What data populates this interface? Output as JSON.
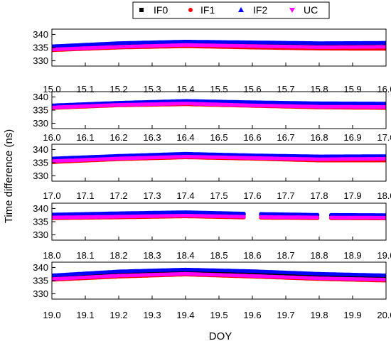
{
  "chart_data": {
    "type": "scatter",
    "ylabel": "Time difference (ns)",
    "xlabel": "DOY",
    "legend": {
      "placement": "top",
      "entries": [
        {
          "name": "IF0",
          "marker": "square",
          "color": "#000000"
        },
        {
          "name": "IF1",
          "marker": "circle",
          "color": "#ff0000"
        },
        {
          "name": "IF2",
          "marker": "triangle",
          "color": "#0000ff"
        },
        {
          "name": "UC",
          "marker": "triangle-down",
          "color": "#ff00ff"
        }
      ]
    },
    "panels": [
      {
        "xlim": [
          15.0,
          16.0
        ],
        "ylim": [
          328,
          342
        ],
        "xticks": [
          "15.0",
          "15.1",
          "15.2",
          "15.3",
          "15.4",
          "15.5",
          "15.6",
          "15.7",
          "15.8",
          "15.9",
          "16.0"
        ],
        "yticks": [
          "330",
          "335",
          "340"
        ],
        "gaps": [],
        "series": [
          {
            "name": "IF0",
            "x": [
              15.0,
              15.2,
              15.4,
              15.6,
              15.8,
              16.0
            ],
            "y": [
              335.0,
              336.0,
              336.5,
              336.0,
              335.5,
              335.5
            ]
          },
          {
            "name": "IF1",
            "x": [
              15.0,
              15.2,
              15.4,
              15.6,
              15.8,
              16.0
            ],
            "y": [
              334.0,
              335.0,
              335.5,
              335.0,
              334.6,
              334.5
            ]
          },
          {
            "name": "IF2",
            "x": [
              15.0,
              15.2,
              15.4,
              15.6,
              15.8,
              16.0
            ],
            "y": [
              335.5,
              336.7,
              337.3,
              337.0,
              336.7,
              336.8
            ]
          },
          {
            "name": "UC",
            "x": [
              15.0,
              15.2,
              15.4,
              15.6,
              15.8,
              16.0
            ],
            "y": [
              334.3,
              335.3,
              336.0,
              335.6,
              335.2,
              335.3
            ]
          }
        ]
      },
      {
        "xlim": [
          16.0,
          17.0
        ],
        "ylim": [
          328,
          342
        ],
        "xticks": [
          "16.0",
          "16.1",
          "16.2",
          "16.3",
          "16.4",
          "16.5",
          "16.6",
          "16.7",
          "16.8",
          "16.9",
          "17.0"
        ],
        "yticks": [
          "330",
          "335",
          "340"
        ],
        "gaps": [],
        "series": [
          {
            "name": "IF0",
            "x": [
              16.0,
              16.2,
              16.4,
              16.6,
              16.8,
              17.0
            ],
            "y": [
              336.3,
              337.5,
              338.0,
              337.5,
              337.0,
              337.0
            ]
          },
          {
            "name": "IF1",
            "x": [
              16.0,
              16.2,
              16.4,
              16.6,
              16.8,
              17.0
            ],
            "y": [
              335.8,
              336.8,
              337.2,
              336.6,
              336.0,
              335.8
            ]
          },
          {
            "name": "IF2",
            "x": [
              16.0,
              16.2,
              16.4,
              16.6,
              16.8,
              17.0
            ],
            "y": [
              336.8,
              337.8,
              338.5,
              338.0,
              337.6,
              337.5
            ]
          },
          {
            "name": "UC",
            "x": [
              16.0,
              16.2,
              16.4,
              16.6,
              16.8,
              17.0
            ],
            "y": [
              336.0,
              337.0,
              337.5,
              336.8,
              336.3,
              336.2
            ]
          }
        ]
      },
      {
        "xlim": [
          17.0,
          18.0
        ],
        "ylim": [
          328,
          342
        ],
        "xticks": [
          "17.0",
          "17.1",
          "17.2",
          "17.3",
          "17.4",
          "17.5",
          "17.6",
          "17.7",
          "17.8",
          "17.9",
          "18.0"
        ],
        "yticks": [
          "330",
          "335",
          "340"
        ],
        "gaps": [],
        "series": [
          {
            "name": "IF0",
            "x": [
              17.0,
              17.2,
              17.4,
              17.6,
              17.8,
              18.0
            ],
            "y": [
              336.0,
              337.0,
              337.8,
              337.2,
              336.8,
              337.0
            ]
          },
          {
            "name": "IF1",
            "x": [
              17.0,
              17.2,
              17.4,
              17.6,
              17.8,
              18.0
            ],
            "y": [
              335.2,
              336.3,
              337.0,
              336.5,
              335.8,
              335.8
            ]
          },
          {
            "name": "IF2",
            "x": [
              17.0,
              17.2,
              17.4,
              17.6,
              17.8,
              18.0
            ],
            "y": [
              336.6,
              337.6,
              338.4,
              337.8,
              337.4,
              337.5
            ]
          },
          {
            "name": "UC",
            "x": [
              17.0,
              17.2,
              17.4,
              17.6,
              17.8,
              18.0
            ],
            "y": [
              335.6,
              336.6,
              337.3,
              336.8,
              336.3,
              336.5
            ]
          }
        ]
      },
      {
        "xlim": [
          18.0,
          19.0
        ],
        "ylim": [
          328,
          342
        ],
        "xticks": [
          "18.0",
          "18.1",
          "18.2",
          "18.3",
          "18.4",
          "18.5",
          "18.6",
          "18.7",
          "18.8",
          "18.9",
          "19.0"
        ],
        "yticks": [
          "330",
          "335",
          "340"
        ],
        "gaps": [
          [
            18.58,
            18.62
          ],
          [
            18.8,
            18.83
          ]
        ],
        "series": [
          {
            "name": "IF0",
            "x": [
              18.0,
              18.2,
              18.4,
              18.6,
              18.8,
              19.0
            ],
            "y": [
              337.3,
              337.8,
              338.2,
              337.6,
              337.4,
              337.2
            ]
          },
          {
            "name": "IF1",
            "x": [
              18.0,
              18.2,
              18.4,
              18.6,
              18.8,
              19.0
            ],
            "y": [
              336.3,
              336.6,
              337.0,
              336.5,
              336.3,
              336.2
            ]
          },
          {
            "name": "IF2",
            "x": [
              18.0,
              18.2,
              18.4,
              18.6,
              18.8,
              19.0
            ],
            "y": [
              337.7,
              338.2,
              338.6,
              338.0,
              337.6,
              337.5
            ]
          },
          {
            "name": "UC",
            "x": [
              18.0,
              18.2,
              18.4,
              18.6,
              18.8,
              19.0
            ],
            "y": [
              336.6,
              336.9,
              337.3,
              336.8,
              336.6,
              336.5
            ]
          }
        ]
      },
      {
        "xlim": [
          19.0,
          20.0
        ],
        "ylim": [
          328,
          342
        ],
        "xticks": [
          "19.0",
          "19.1",
          "19.2",
          "19.3",
          "19.4",
          "19.5",
          "19.6",
          "19.7",
          "19.8",
          "19.9",
          "20.0"
        ],
        "yticks": [
          "330",
          "335",
          "340"
        ],
        "gaps": [],
        "series": [
          {
            "name": "IF0",
            "x": [
              19.0,
              19.2,
              19.4,
              19.6,
              19.8,
              20.0
            ],
            "y": [
              336.5,
              338.0,
              338.8,
              338.0,
              337.0,
              336.3
            ]
          },
          {
            "name": "IF1",
            "x": [
              19.0,
              19.2,
              19.4,
              19.6,
              19.8,
              20.0
            ],
            "y": [
              335.3,
              336.5,
              337.3,
              336.5,
              335.6,
              335.0
            ]
          },
          {
            "name": "IF2",
            "x": [
              19.0,
              19.2,
              19.4,
              19.6,
              19.8,
              20.0
            ],
            "y": [
              337.0,
              338.5,
              339.2,
              338.6,
              337.6,
              337.0
            ]
          },
          {
            "name": "UC",
            "x": [
              19.0,
              19.2,
              19.4,
              19.6,
              19.8,
              20.0
            ],
            "y": [
              335.6,
              336.9,
              337.6,
              336.8,
              335.9,
              335.4
            ]
          }
        ]
      }
    ]
  }
}
